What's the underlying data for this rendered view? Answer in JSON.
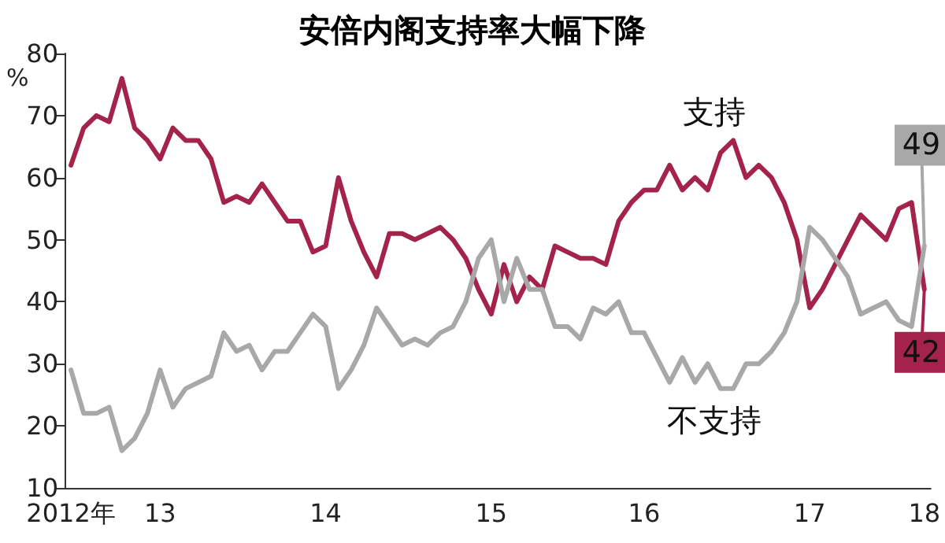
{
  "chart_data": {
    "type": "line",
    "title": "安倍内阁支持率大幅下降",
    "ylabel": "%",
    "categories": [
      "2012年",
      null,
      null,
      null,
      null,
      null,
      null,
      "13",
      null,
      null,
      null,
      null,
      null,
      null,
      null,
      null,
      null,
      null,
      null,
      null,
      "14",
      null,
      null,
      null,
      null,
      null,
      null,
      null,
      null,
      null,
      null,
      null,
      null,
      "15",
      null,
      null,
      null,
      null,
      null,
      null,
      null,
      null,
      null,
      null,
      null,
      "16",
      null,
      null,
      null,
      null,
      null,
      null,
      null,
      null,
      null,
      null,
      null,
      null,
      "17",
      null,
      null,
      null,
      null,
      null,
      null,
      null,
      null,
      "18"
    ],
    "series": [
      {
        "name": "支持",
        "color": "#a3234a",
        "values": [
          62,
          68,
          70,
          69,
          76,
          68,
          66,
          63,
          68,
          66,
          66,
          63,
          56,
          57,
          56,
          59,
          56,
          53,
          53,
          48,
          49,
          60,
          53,
          48,
          44,
          51,
          51,
          50,
          51,
          52,
          50,
          47,
          42,
          38,
          46,
          40,
          44,
          42,
          49,
          48,
          47,
          47,
          46,
          53,
          56,
          58,
          58,
          62,
          58,
          60,
          58,
          64,
          66,
          60,
          62,
          60,
          56,
          50,
          39,
          42,
          46,
          50,
          54,
          52,
          50,
          55,
          56,
          42
        ]
      },
      {
        "name": "不支持",
        "color": "#a8a8a8",
        "values": [
          29,
          22,
          22,
          23,
          16,
          18,
          22,
          29,
          23,
          26,
          27,
          28,
          35,
          32,
          33,
          29,
          32,
          32,
          35,
          38,
          36,
          26,
          29,
          33,
          39,
          36,
          33,
          34,
          33,
          35,
          36,
          40,
          47,
          50,
          40,
          47,
          42,
          42,
          36,
          36,
          34,
          39,
          38,
          40,
          35,
          35,
          31,
          27,
          31,
          27,
          30,
          26,
          26,
          30,
          30,
          32,
          35,
          40,
          52,
          50,
          47,
          44,
          38,
          39,
          40,
          37,
          36,
          49
        ]
      }
    ],
    "annotations": [
      {
        "text": "49",
        "x": "18",
        "y": 49
      },
      {
        "text": "42",
        "x": "18",
        "y": 42
      }
    ],
    "ylim": [
      10,
      80
    ],
    "yticks": [
      10,
      20,
      30,
      40,
      50,
      60,
      70,
      80
    ],
    "grid": false,
    "legend": false,
    "marker": "none",
    "line_style": "solid"
  }
}
